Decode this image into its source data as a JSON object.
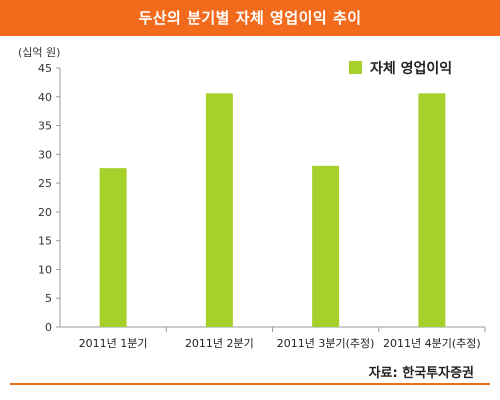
{
  "header": {
    "title": "두산의 분기별 자체 영업이익 추이"
  },
  "chart_data": {
    "type": "bar",
    "title": "두산의 분기별 자체 영업이익 추이",
    "ylabel": "(십억 원)",
    "xlabel": "",
    "categories": [
      "2011년 1분기",
      "2011년 2분기",
      "2011년 3분기(추정)",
      "2011년 4분기(추정)"
    ],
    "series": [
      {
        "name": "자체 영업이익",
        "values": [
          27.6,
          40.6,
          28.0,
          40.6
        ]
      }
    ],
    "ylim": [
      0,
      45
    ],
    "yticks": [
      "0",
      "5",
      "10",
      "15",
      "20",
      "25",
      "30",
      "35",
      "40",
      "45"
    ],
    "grid": false,
    "legend_position": "top-right",
    "colors": {
      "bar": "#a6d12b",
      "accent": "#f26b1d",
      "axis": "#999999"
    }
  },
  "source": "자료: 한국투자증권"
}
